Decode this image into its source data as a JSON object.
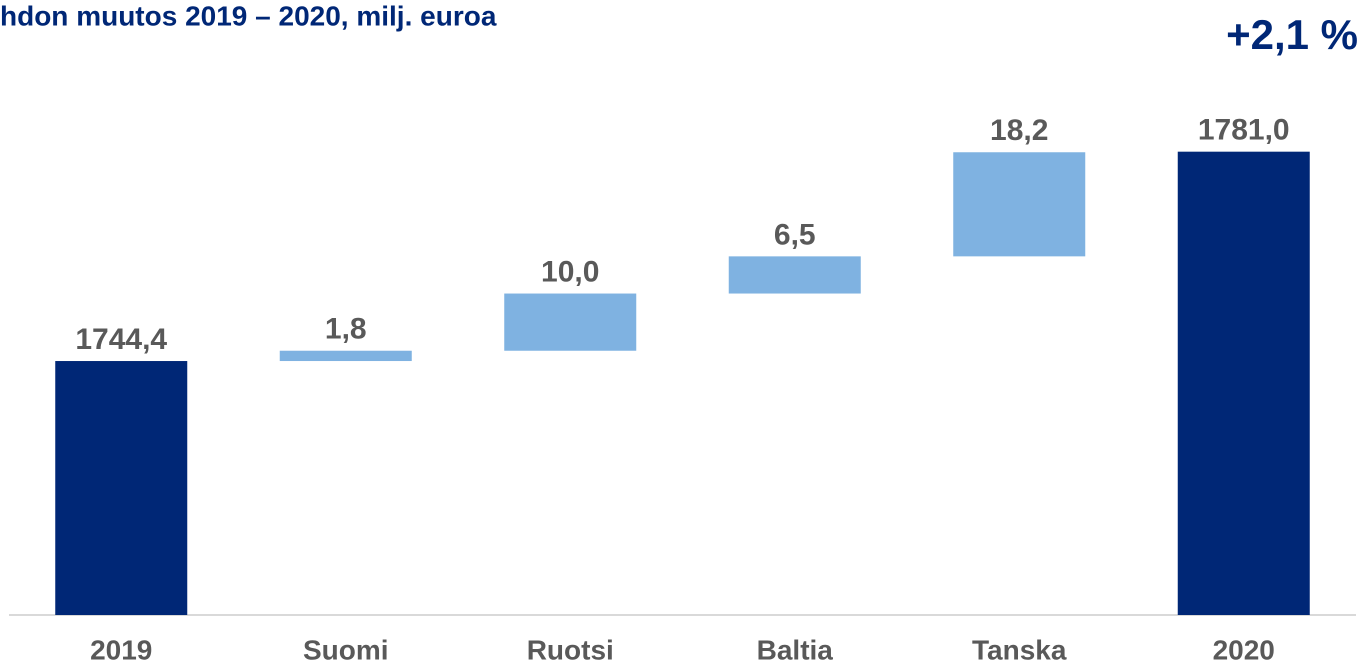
{
  "chart_data": {
    "type": "waterfall",
    "title": "hdon muutos 2019 – 2020, milj. euroa",
    "annotation": "+2,1 %",
    "categories": [
      "2019",
      "Suomi",
      "Ruotsi",
      "Baltia",
      "Tanska",
      "2020"
    ],
    "values": [
      1744.4,
      1.8,
      10.0,
      6.5,
      18.2,
      1781.0
    ],
    "value_labels": [
      "1744,4",
      "1,8",
      "10,0",
      "6,5",
      "18,2",
      "1781,0"
    ],
    "totals": [
      true,
      false,
      false,
      false,
      false,
      true
    ],
    "color": "#7fb2e1",
    "total_color": "#002776",
    "ylim": [
      1700,
      1800
    ]
  }
}
